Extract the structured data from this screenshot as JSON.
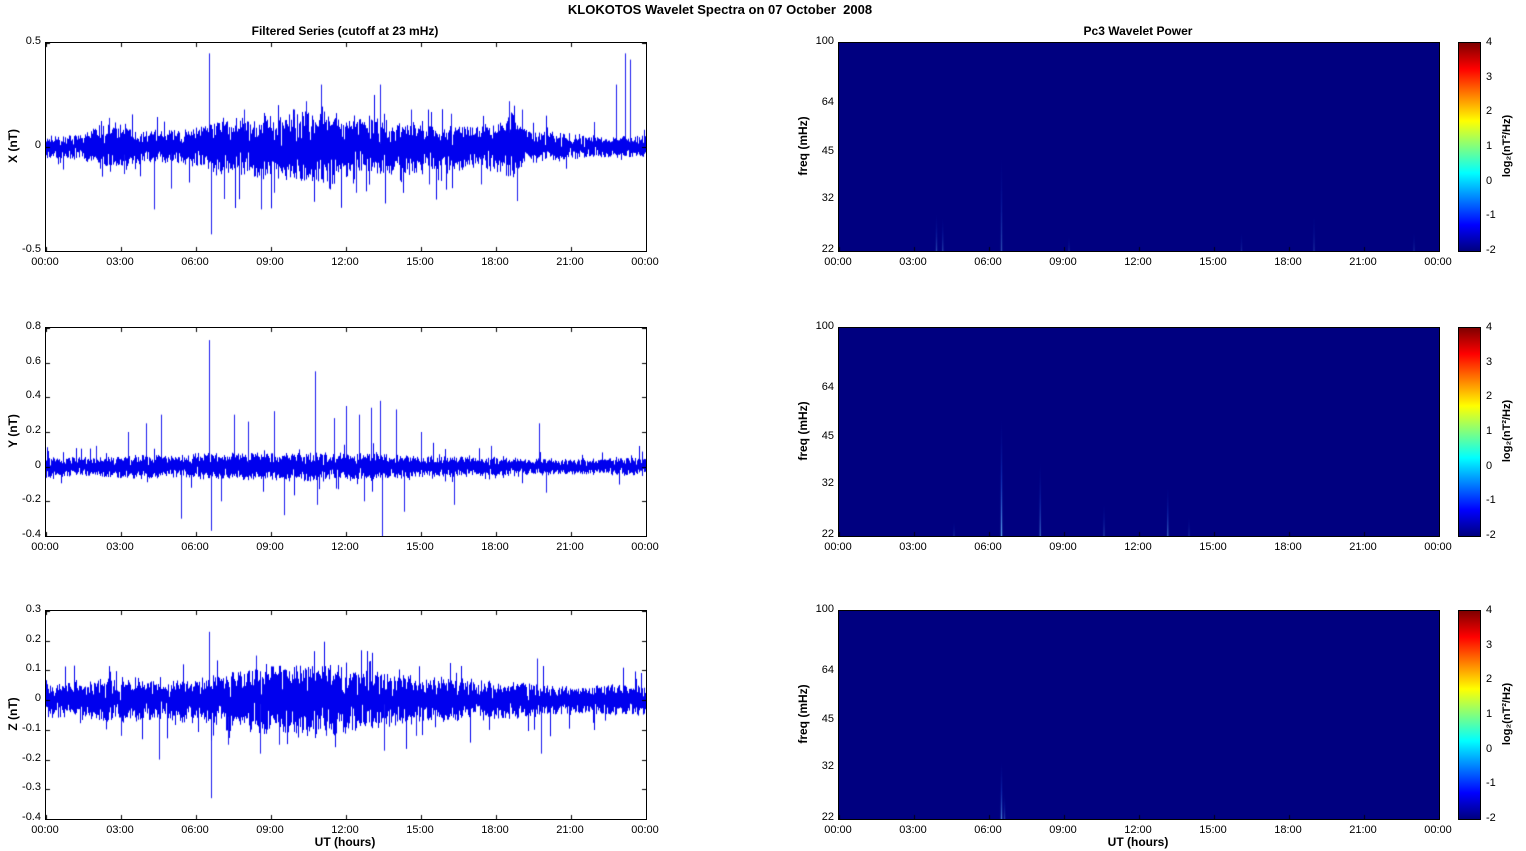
{
  "figure_title": "KLOKOTOS Wavelet Spectra on 07 October  2008",
  "series_color": "#0000ee",
  "spectro_bg": "#000080",
  "x_axis": {
    "label": "UT (hours)",
    "range": [
      0,
      24
    ],
    "hours": [
      0,
      3,
      6,
      9,
      12,
      15,
      18,
      21,
      24
    ],
    "labels": [
      "00:00",
      "03:00",
      "06:00",
      "09:00",
      "12:00",
      "15:00",
      "18:00",
      "21:00",
      "00:00"
    ]
  },
  "colorbar": {
    "min": -2,
    "max": 4,
    "ticks": [
      "4",
      "3",
      "2",
      "1",
      "0",
      "-1",
      "-2"
    ],
    "label": "log₂(nT²/Hz)",
    "colormap": "jet",
    "gradient": [
      [
        "#00007F",
        0
      ],
      [
        "#0000FF",
        12.5
      ],
      [
        "#00FFFF",
        37.5
      ],
      [
        "#FFFF00",
        62.5
      ],
      [
        "#FF0000",
        87.5
      ],
      [
        "#7F0000",
        100
      ]
    ]
  },
  "chart_data": [
    {
      "id": "ts-x",
      "type": "line",
      "title": "Filtered Series (cutoff at 23 mHz)",
      "ylabel": "X (nT)",
      "ylim": [
        -0.5,
        0.5
      ],
      "yticks": [
        0.5,
        0,
        -0.5
      ],
      "ytick_labels": [
        "0.5",
        "0",
        "-0.5"
      ],
      "seed": 11,
      "envelope": [
        [
          0,
          0.035
        ],
        [
          1.5,
          0.04
        ],
        [
          2.2,
          0.07
        ],
        [
          3,
          0.075
        ],
        [
          3.6,
          0.055
        ],
        [
          4.5,
          0.05
        ],
        [
          5.5,
          0.055
        ],
        [
          6.2,
          0.07
        ],
        [
          7,
          0.09
        ],
        [
          8,
          0.09
        ],
        [
          9,
          0.1
        ],
        [
          10,
          0.11
        ],
        [
          10.8,
          0.12
        ],
        [
          11.5,
          0.11
        ],
        [
          12,
          0.1
        ],
        [
          13,
          0.09
        ],
        [
          14,
          0.085
        ],
        [
          15,
          0.075
        ],
        [
          16,
          0.07
        ],
        [
          17,
          0.065
        ],
        [
          18,
          0.075
        ],
        [
          18.6,
          0.11
        ],
        [
          19.2,
          0.05
        ],
        [
          20,
          0.045
        ],
        [
          21,
          0.04
        ],
        [
          22,
          0.035
        ],
        [
          23,
          0.035
        ],
        [
          24,
          0.035
        ]
      ],
      "spikes": [
        [
          2.5,
          0.14
        ],
        [
          3.1,
          -0.13
        ],
        [
          4.3,
          -0.3
        ],
        [
          5.0,
          -0.2
        ],
        [
          6.5,
          0.45
        ],
        [
          6.6,
          -0.42
        ],
        [
          7.1,
          -0.25
        ],
        [
          7.9,
          0.18
        ],
        [
          8.6,
          -0.3
        ],
        [
          9.1,
          -0.22
        ],
        [
          9.9,
          0.18
        ],
        [
          10.4,
          0.22
        ],
        [
          11.0,
          0.3
        ],
        [
          11.3,
          -0.2
        ],
        [
          12.4,
          -0.22
        ],
        [
          13.35,
          0.3
        ],
        [
          13.55,
          -0.27
        ],
        [
          14.6,
          0.18
        ],
        [
          15.3,
          -0.18
        ],
        [
          16.2,
          0.16
        ],
        [
          17.4,
          -0.18
        ],
        [
          18.5,
          0.22
        ],
        [
          18.85,
          -0.26
        ],
        [
          19.05,
          0.18
        ],
        [
          21.9,
          0.12
        ],
        [
          22.8,
          0.3
        ],
        [
          23.15,
          0.45
        ],
        [
          23.35,
          0.42
        ]
      ]
    },
    {
      "id": "ts-y",
      "type": "line",
      "ylabel": "Y (nT)",
      "ylim": [
        -0.4,
        0.8
      ],
      "yticks": [
        0.8,
        0.6,
        0.4,
        0.2,
        0,
        -0.2,
        -0.4
      ],
      "ytick_labels": [
        "0.8",
        "0.6",
        "0.4",
        "0.2",
        "0",
        "-0.2",
        "-0.4"
      ],
      "seed": 23,
      "envelope": [
        [
          0,
          0.045
        ],
        [
          1,
          0.035
        ],
        [
          2,
          0.035
        ],
        [
          3,
          0.04
        ],
        [
          4,
          0.045
        ],
        [
          5,
          0.04
        ],
        [
          6,
          0.05
        ],
        [
          7,
          0.05
        ],
        [
          8,
          0.05
        ],
        [
          9,
          0.055
        ],
        [
          10,
          0.05
        ],
        [
          11,
          0.055
        ],
        [
          12,
          0.05
        ],
        [
          13,
          0.05
        ],
        [
          14,
          0.045
        ],
        [
          15,
          0.04
        ],
        [
          16,
          0.04
        ],
        [
          17,
          0.035
        ],
        [
          18,
          0.035
        ],
        [
          19,
          0.03
        ],
        [
          20,
          0.03
        ],
        [
          21,
          0.03
        ],
        [
          22,
          0.03
        ],
        [
          23,
          0.035
        ],
        [
          24,
          0.035
        ]
      ],
      "spikes": [
        [
          2.0,
          0.12
        ],
        [
          3.3,
          0.2
        ],
        [
          4.0,
          0.25
        ],
        [
          4.6,
          0.3
        ],
        [
          5.4,
          -0.3
        ],
        [
          6.5,
          0.73
        ],
        [
          6.6,
          -0.37
        ],
        [
          7.0,
          -0.2
        ],
        [
          7.5,
          0.3
        ],
        [
          8.1,
          0.26
        ],
        [
          9.1,
          0.32
        ],
        [
          9.5,
          -0.28
        ],
        [
          10.75,
          0.55
        ],
        [
          10.85,
          -0.22
        ],
        [
          11.5,
          0.28
        ],
        [
          12.0,
          0.35
        ],
        [
          12.5,
          0.3
        ],
        [
          12.7,
          -0.2
        ],
        [
          13.0,
          0.34
        ],
        [
          13.35,
          0.38
        ],
        [
          13.45,
          -0.4
        ],
        [
          14.0,
          0.33
        ],
        [
          14.3,
          -0.26
        ],
        [
          15.0,
          0.2
        ],
        [
          16.3,
          -0.22
        ],
        [
          17.8,
          0.12
        ],
        [
          19.7,
          0.25
        ],
        [
          20.0,
          -0.15
        ]
      ]
    },
    {
      "id": "ts-z",
      "type": "line",
      "ylabel": "Z (nT)",
      "ylim": [
        -0.4,
        0.3
      ],
      "yticks": [
        0.3,
        0.2,
        0.1,
        0,
        -0.1,
        -0.2,
        -0.3,
        -0.4
      ],
      "ytick_labels": [
        "0.3",
        "0.2",
        "0.1",
        "0",
        "-0.1",
        "-0.2",
        "-0.3",
        "-0.4"
      ],
      "seed": 37,
      "envelope": [
        [
          0,
          0.035
        ],
        [
          1,
          0.04
        ],
        [
          2,
          0.045
        ],
        [
          3,
          0.05
        ],
        [
          4,
          0.045
        ],
        [
          5,
          0.04
        ],
        [
          6,
          0.05
        ],
        [
          7,
          0.06
        ],
        [
          8,
          0.07
        ],
        [
          9,
          0.075
        ],
        [
          10,
          0.075
        ],
        [
          11,
          0.08
        ],
        [
          12,
          0.075
        ],
        [
          13,
          0.06
        ],
        [
          14,
          0.055
        ],
        [
          15,
          0.05
        ],
        [
          16,
          0.05
        ],
        [
          17,
          0.045
        ],
        [
          18,
          0.04
        ],
        [
          19,
          0.04
        ],
        [
          20,
          0.035
        ],
        [
          21,
          0.03
        ],
        [
          22,
          0.03
        ],
        [
          23,
          0.035
        ],
        [
          24,
          0.03
        ]
      ],
      "spikes": [
        [
          3.0,
          -0.12
        ],
        [
          4.5,
          -0.2
        ],
        [
          6.5,
          0.23
        ],
        [
          6.6,
          -0.33
        ],
        [
          7.3,
          -0.15
        ],
        [
          8.4,
          0.15
        ],
        [
          8.55,
          -0.18
        ],
        [
          9.3,
          -0.15
        ],
        [
          10.7,
          0.15
        ],
        [
          11.2,
          -0.12
        ],
        [
          12.9,
          0.13
        ],
        [
          13.5,
          -0.17
        ],
        [
          14.8,
          -0.12
        ],
        [
          19.65,
          0.14
        ],
        [
          19.8,
          -0.18
        ]
      ]
    },
    {
      "id": "sp-x",
      "type": "heatmap",
      "title": "Pc3 Wavelet Power",
      "ylabel": "freq (mHz)",
      "flim": [
        22,
        100
      ],
      "fticks": [
        100,
        64,
        45,
        32,
        22
      ],
      "background_value": -2,
      "events": [
        [
          3.9,
          30,
          0.35
        ],
        [
          4.15,
          29,
          0.3
        ],
        [
          6.5,
          48,
          0.4
        ],
        [
          9.2,
          25,
          0.18
        ],
        [
          16.1,
          26,
          0.18
        ],
        [
          19.0,
          30,
          0.22
        ],
        [
          23.0,
          26,
          0.18
        ]
      ]
    },
    {
      "id": "sp-y",
      "type": "heatmap",
      "ylabel": "freq (mHz)",
      "flim": [
        22,
        100
      ],
      "fticks": [
        100,
        64,
        45,
        32,
        22
      ],
      "background_value": -2,
      "events": [
        [
          4.6,
          25,
          0.2
        ],
        [
          6.5,
          56,
          0.85
        ],
        [
          8.05,
          40,
          0.5
        ],
        [
          10.6,
          29,
          0.3
        ],
        [
          13.15,
          33,
          0.5
        ],
        [
          14.0,
          26,
          0.2
        ]
      ]
    },
    {
      "id": "sp-z",
      "type": "heatmap",
      "ylabel": "freq (mHz)",
      "flim": [
        22,
        100
      ],
      "fticks": [
        100,
        64,
        45,
        32,
        22
      ],
      "background_value": -2,
      "events": [
        [
          6.5,
          35,
          0.65
        ],
        [
          6.62,
          27,
          0.3
        ]
      ]
    }
  ]
}
